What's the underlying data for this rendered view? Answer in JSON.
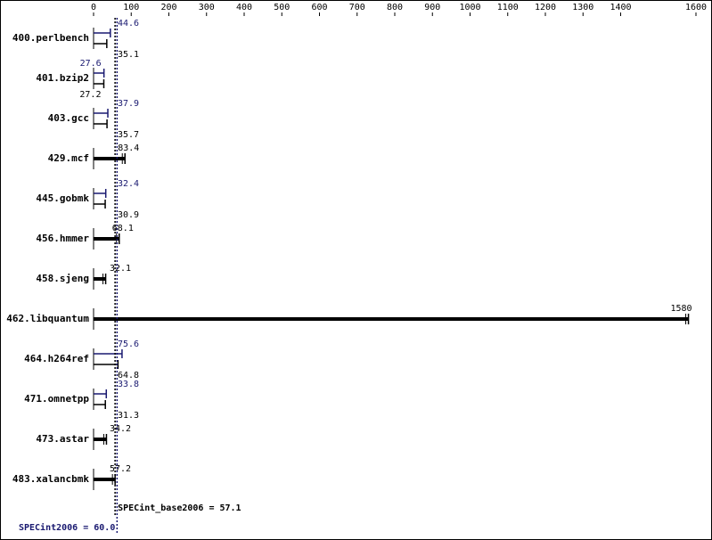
{
  "chart_data": {
    "type": "bar",
    "orientation": "horizontal",
    "categories": [
      "400.perlbench",
      "401.bzip2",
      "403.gcc",
      "429.mcf",
      "445.gobmk",
      "456.hmmer",
      "458.sjeng",
      "462.libquantum",
      "464.h264ref",
      "471.omnetpp",
      "473.astar",
      "483.xalancbmk"
    ],
    "series": [
      {
        "color": "#191970",
        "values": [
          44.6,
          27.6,
          37.9,
          null,
          32.4,
          null,
          null,
          null,
          75.6,
          33.8,
          null,
          null
        ]
      },
      {
        "color": "#000000",
        "values": [
          35.1,
          27.2,
          35.7,
          83.4,
          30.9,
          68.1,
          32.1,
          1580,
          64.8,
          31.3,
          34.2,
          57.2
        ]
      }
    ],
    "xlim": [
      0,
      1600
    ],
    "xticks": [
      0,
      100,
      200,
      300,
      400,
      500,
      600,
      700,
      800,
      900,
      1000,
      1100,
      1200,
      1300,
      1400,
      1600
    ],
    "reference_lines": [
      {
        "label": "SPECint_base2006 = 57.1",
        "value": 57.1,
        "color": "#000000"
      },
      {
        "label": "SPECint2006 = 60.0",
        "value": 60.0,
        "color": "#191970"
      }
    ]
  }
}
